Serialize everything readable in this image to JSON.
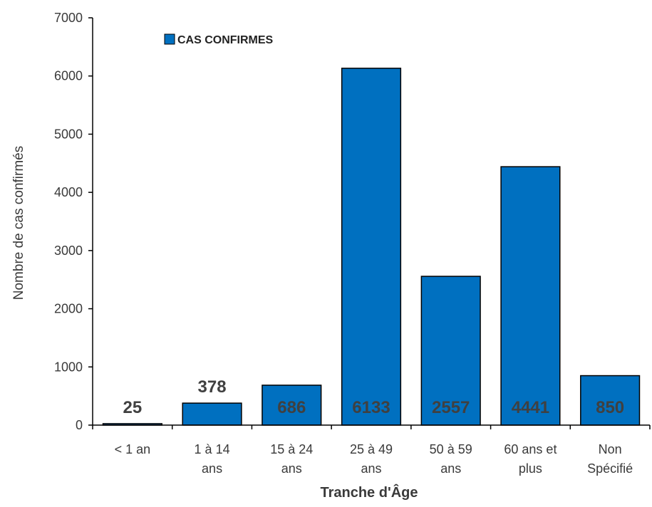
{
  "chart_data": {
    "type": "bar",
    "categories": [
      [
        "< 1 an"
      ],
      [
        "1 à 14",
        "ans"
      ],
      [
        "15 à 24",
        "ans"
      ],
      [
        "25 à 49",
        "ans"
      ],
      [
        "50 à 59",
        "ans"
      ],
      [
        "60 ans et",
        "plus"
      ],
      [
        "Non",
        "Spécifié"
      ]
    ],
    "series": [
      {
        "name": "CAS CONFIRMES",
        "values": [
          25,
          378,
          686,
          6133,
          2557,
          4441,
          850
        ],
        "color": "#0070C0"
      }
    ],
    "data_labels": [
      "25",
      "378",
      "686",
      "6133",
      "2557",
      "4441",
      "850"
    ],
    "xlabel": "Tranche d'Âge",
    "ylabel": "Nombre de cas confirmés",
    "ylim": [
      0,
      7000
    ],
    "yticks": [
      "0",
      "1000",
      "2000",
      "3000",
      "4000",
      "5000",
      "6000",
      "7000"
    ],
    "grid": false,
    "legend_position": "top-left",
    "label_color_outside": "#404040",
    "label_color_inside": "#404040"
  }
}
